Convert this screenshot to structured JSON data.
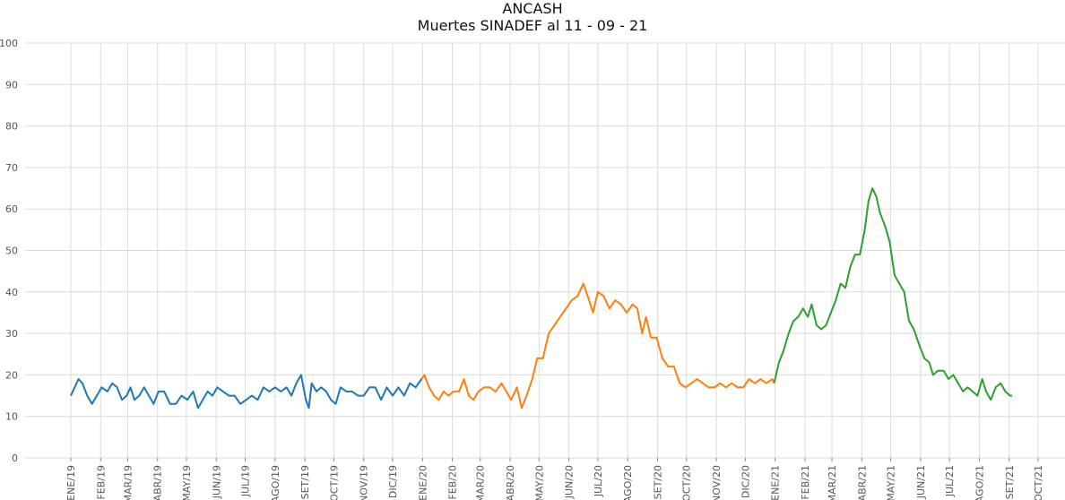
{
  "chart_data": {
    "type": "line",
    "title": "ANCASH",
    "subtitle": "Muertes SINADEF al 11 - 09 - 21",
    "xlabel": "",
    "ylabel": "",
    "ylim": [
      0,
      100
    ],
    "yticks": [
      0,
      10,
      20,
      30,
      40,
      50,
      60,
      70,
      80,
      90,
      100
    ],
    "x_range": [
      "2018-12-01",
      "2021-10-30"
    ],
    "xticks": [
      {
        "label": "ENE/19",
        "date": "2019-01-01"
      },
      {
        "label": "FEB/19",
        "date": "2019-02-01"
      },
      {
        "label": "MAR/19",
        "date": "2019-03-01"
      },
      {
        "label": "ABR/19",
        "date": "2019-04-01"
      },
      {
        "label": "MAY/19",
        "date": "2019-05-01"
      },
      {
        "label": "JUN/19",
        "date": "2019-06-01"
      },
      {
        "label": "JUL/19",
        "date": "2019-07-01"
      },
      {
        "label": "AGO/19",
        "date": "2019-08-01"
      },
      {
        "label": "SET/19",
        "date": "2019-09-01"
      },
      {
        "label": "OCT/19",
        "date": "2019-10-01"
      },
      {
        "label": "NOV/19",
        "date": "2019-11-01"
      },
      {
        "label": "DIC/19",
        "date": "2019-12-01"
      },
      {
        "label": "ENE/20",
        "date": "2020-01-01"
      },
      {
        "label": "FEB/20",
        "date": "2020-02-01"
      },
      {
        "label": "MAR/20",
        "date": "2020-03-01"
      },
      {
        "label": "ABR/20",
        "date": "2020-04-01"
      },
      {
        "label": "MAY/20",
        "date": "2020-05-01"
      },
      {
        "label": "JUN/20",
        "date": "2020-06-01"
      },
      {
        "label": "JUL/20",
        "date": "2020-07-01"
      },
      {
        "label": "AGO/20",
        "date": "2020-08-01"
      },
      {
        "label": "SET/20",
        "date": "2020-09-01"
      },
      {
        "label": "OCT/20",
        "date": "2020-10-01"
      },
      {
        "label": "NOV/20",
        "date": "2020-11-01"
      },
      {
        "label": "DIC/20",
        "date": "2020-12-01"
      },
      {
        "label": "ENE/21",
        "date": "2021-01-01"
      },
      {
        "label": "FEB/21",
        "date": "2021-02-01"
      },
      {
        "label": "MAR/21",
        "date": "2021-03-01"
      },
      {
        "label": "ABR/21",
        "date": "2021-04-01"
      },
      {
        "label": "MAY/21",
        "date": "2021-05-01"
      },
      {
        "label": "JUN/21",
        "date": "2021-06-01"
      },
      {
        "label": "JUL/21",
        "date": "2021-07-01"
      },
      {
        "label": "AGO/21",
        "date": "2021-08-01"
      },
      {
        "label": "SET/21",
        "date": "2021-09-01"
      },
      {
        "label": "OCT/21",
        "date": "2021-10-01"
      }
    ],
    "grid": true,
    "legend": "none",
    "series": [
      {
        "color": "#1f77b4",
        "points": [
          [
            "2019-01-01",
            15
          ],
          [
            "2019-01-05",
            17
          ],
          [
            "2019-01-09",
            19
          ],
          [
            "2019-01-13",
            18
          ],
          [
            "2019-01-18",
            15
          ],
          [
            "2019-01-23",
            13
          ],
          [
            "2019-01-28",
            15
          ],
          [
            "2019-02-02",
            17
          ],
          [
            "2019-02-08",
            16
          ],
          [
            "2019-02-13",
            18
          ],
          [
            "2019-02-18",
            17
          ],
          [
            "2019-02-23",
            14
          ],
          [
            "2019-02-28",
            15
          ],
          [
            "2019-03-04",
            17
          ],
          [
            "2019-03-08",
            14
          ],
          [
            "2019-03-13",
            15
          ],
          [
            "2019-03-18",
            17
          ],
          [
            "2019-03-23",
            15
          ],
          [
            "2019-03-28",
            13
          ],
          [
            "2019-04-02",
            16
          ],
          [
            "2019-04-08",
            16
          ],
          [
            "2019-04-14",
            13
          ],
          [
            "2019-04-20",
            13
          ],
          [
            "2019-04-26",
            15
          ],
          [
            "2019-05-02",
            14
          ],
          [
            "2019-05-08",
            16
          ],
          [
            "2019-05-13",
            12
          ],
          [
            "2019-05-18",
            14
          ],
          [
            "2019-05-23",
            16
          ],
          [
            "2019-05-28",
            15
          ],
          [
            "2019-06-02",
            17
          ],
          [
            "2019-06-08",
            16
          ],
          [
            "2019-06-14",
            15
          ],
          [
            "2019-06-20",
            15
          ],
          [
            "2019-06-26",
            13
          ],
          [
            "2019-07-02",
            14
          ],
          [
            "2019-07-08",
            15
          ],
          [
            "2019-07-14",
            14
          ],
          [
            "2019-07-20",
            17
          ],
          [
            "2019-07-26",
            16
          ],
          [
            "2019-08-01",
            17
          ],
          [
            "2019-08-07",
            16
          ],
          [
            "2019-08-13",
            17
          ],
          [
            "2019-08-18",
            15
          ],
          [
            "2019-08-23",
            18
          ],
          [
            "2019-08-28",
            20
          ],
          [
            "2019-09-02",
            14
          ],
          [
            "2019-09-05",
            12
          ],
          [
            "2019-09-08",
            18
          ],
          [
            "2019-09-13",
            16
          ],
          [
            "2019-09-18",
            17
          ],
          [
            "2019-09-23",
            16
          ],
          [
            "2019-09-28",
            14
          ],
          [
            "2019-10-03",
            13
          ],
          [
            "2019-10-08",
            17
          ],
          [
            "2019-10-14",
            16
          ],
          [
            "2019-10-20",
            16
          ],
          [
            "2019-10-26",
            15
          ],
          [
            "2019-11-01",
            15
          ],
          [
            "2019-11-07",
            17
          ],
          [
            "2019-11-13",
            17
          ],
          [
            "2019-11-19",
            14
          ],
          [
            "2019-11-25",
            17
          ],
          [
            "2019-12-01",
            15
          ],
          [
            "2019-12-07",
            17
          ],
          [
            "2019-12-13",
            15
          ],
          [
            "2019-12-19",
            18
          ],
          [
            "2019-12-25",
            17
          ],
          [
            "2019-12-31",
            19
          ]
        ]
      },
      {
        "color": "#ff7f0e",
        "points": [
          [
            "2019-12-31",
            19
          ],
          [
            "2020-01-03",
            20
          ],
          [
            "2020-01-08",
            17
          ],
          [
            "2020-01-13",
            15
          ],
          [
            "2020-01-18",
            14
          ],
          [
            "2020-01-23",
            16
          ],
          [
            "2020-01-28",
            15
          ],
          [
            "2020-02-02",
            16
          ],
          [
            "2020-02-08",
            16
          ],
          [
            "2020-02-13",
            19
          ],
          [
            "2020-02-18",
            15
          ],
          [
            "2020-02-23",
            14
          ],
          [
            "2020-02-28",
            16
          ],
          [
            "2020-03-05",
            17
          ],
          [
            "2020-03-11",
            17
          ],
          [
            "2020-03-17",
            16
          ],
          [
            "2020-03-23",
            18
          ],
          [
            "2020-03-28",
            16
          ],
          [
            "2020-04-02",
            14
          ],
          [
            "2020-04-08",
            17
          ],
          [
            "2020-04-13",
            12
          ],
          [
            "2020-04-18",
            15
          ],
          [
            "2020-04-24",
            19
          ],
          [
            "2020-04-29",
            24
          ],
          [
            "2020-05-05",
            24
          ],
          [
            "2020-05-11",
            30
          ],
          [
            "2020-05-17",
            32
          ],
          [
            "2020-05-23",
            34
          ],
          [
            "2020-05-29",
            36
          ],
          [
            "2020-06-04",
            38
          ],
          [
            "2020-06-10",
            39
          ],
          [
            "2020-06-16",
            42
          ],
          [
            "2020-06-22",
            38
          ],
          [
            "2020-06-26",
            35
          ],
          [
            "2020-07-01",
            40
          ],
          [
            "2020-07-07",
            39
          ],
          [
            "2020-07-13",
            36
          ],
          [
            "2020-07-19",
            38
          ],
          [
            "2020-07-25",
            37
          ],
          [
            "2020-07-31",
            35
          ],
          [
            "2020-08-06",
            37
          ],
          [
            "2020-08-11",
            36
          ],
          [
            "2020-08-16",
            30
          ],
          [
            "2020-08-20",
            34
          ],
          [
            "2020-08-25",
            29
          ],
          [
            "2020-08-31",
            29
          ],
          [
            "2020-09-06",
            24
          ],
          [
            "2020-09-12",
            22
          ],
          [
            "2020-09-18",
            22
          ],
          [
            "2020-09-24",
            18
          ],
          [
            "2020-09-30",
            17
          ],
          [
            "2020-10-06",
            18
          ],
          [
            "2020-10-12",
            19
          ],
          [
            "2020-10-18",
            18
          ],
          [
            "2020-10-24",
            17
          ],
          [
            "2020-10-30",
            17
          ],
          [
            "2020-11-05",
            18
          ],
          [
            "2020-11-11",
            17
          ],
          [
            "2020-11-17",
            18
          ],
          [
            "2020-11-23",
            17
          ],
          [
            "2020-11-29",
            17
          ],
          [
            "2020-12-05",
            19
          ],
          [
            "2020-12-11",
            18
          ],
          [
            "2020-12-17",
            19
          ],
          [
            "2020-12-23",
            18
          ],
          [
            "2020-12-29",
            19
          ],
          [
            "2020-12-31",
            18
          ]
        ]
      },
      {
        "color": "#2ca02c",
        "points": [
          [
            "2020-12-31",
            18
          ],
          [
            "2021-01-05",
            23
          ],
          [
            "2021-01-10",
            26
          ],
          [
            "2021-01-15",
            30
          ],
          [
            "2021-01-20",
            33
          ],
          [
            "2021-01-25",
            34
          ],
          [
            "2021-01-30",
            36
          ],
          [
            "2021-02-04",
            34
          ],
          [
            "2021-02-08",
            37
          ],
          [
            "2021-02-13",
            32
          ],
          [
            "2021-02-18",
            31
          ],
          [
            "2021-02-23",
            32
          ],
          [
            "2021-02-28",
            35
          ],
          [
            "2021-03-05",
            38
          ],
          [
            "2021-03-10",
            42
          ],
          [
            "2021-03-15",
            41
          ],
          [
            "2021-03-20",
            46
          ],
          [
            "2021-03-25",
            49
          ],
          [
            "2021-03-30",
            49
          ],
          [
            "2021-04-04",
            55
          ],
          [
            "2021-04-08",
            62
          ],
          [
            "2021-04-12",
            65
          ],
          [
            "2021-04-16",
            63
          ],
          [
            "2021-04-20",
            59
          ],
          [
            "2021-04-25",
            56
          ],
          [
            "2021-04-30",
            52
          ],
          [
            "2021-05-05",
            44
          ],
          [
            "2021-05-10",
            42
          ],
          [
            "2021-05-15",
            40
          ],
          [
            "2021-05-20",
            33
          ],
          [
            "2021-05-25",
            31
          ],
          [
            "2021-05-31",
            27
          ],
          [
            "2021-06-05",
            24
          ],
          [
            "2021-06-10",
            23
          ],
          [
            "2021-06-14",
            20
          ],
          [
            "2021-06-19",
            21
          ],
          [
            "2021-06-25",
            21
          ],
          [
            "2021-06-30",
            19
          ],
          [
            "2021-07-05",
            20
          ],
          [
            "2021-07-10",
            18
          ],
          [
            "2021-07-15",
            16
          ],
          [
            "2021-07-20",
            17
          ],
          [
            "2021-07-25",
            16
          ],
          [
            "2021-07-30",
            15
          ],
          [
            "2021-08-04",
            19
          ],
          [
            "2021-08-08",
            16
          ],
          [
            "2021-08-13",
            14
          ],
          [
            "2021-08-18",
            17
          ],
          [
            "2021-08-23",
            18
          ],
          [
            "2021-08-28",
            16
          ],
          [
            "2021-09-02",
            15
          ],
          [
            "2021-09-04",
            15
          ]
        ]
      }
    ]
  }
}
